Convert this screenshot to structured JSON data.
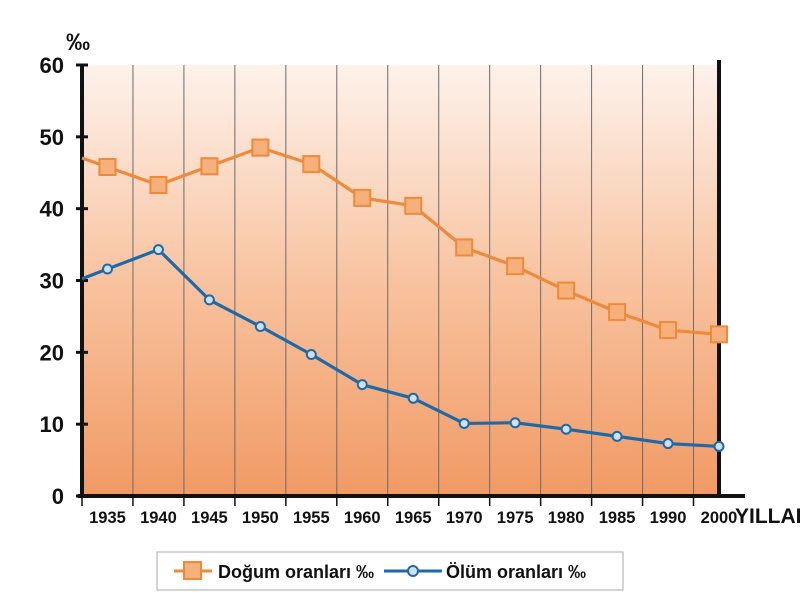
{
  "chart_data": {
    "type": "line",
    "y_unit_label": "‰",
    "x_axis_label": "YILLAR",
    "x": [
      1935,
      1940,
      1945,
      1950,
      1955,
      1960,
      1965,
      1970,
      1975,
      1980,
      1985,
      1990,
      2000
    ],
    "x_tick_labels": [
      "1935",
      "1940",
      "1945",
      "1950",
      "1955",
      "1960",
      "1965",
      "1970",
      "1975",
      "1980",
      "1985",
      "1990",
      "2000"
    ],
    "y_ticks": [
      0,
      10,
      20,
      30,
      40,
      50,
      60
    ],
    "ylim": [
      0,
      60
    ],
    "grid": "vertical",
    "legend_position": "bottom",
    "series": [
      {
        "name": "Doğum oranları ‰",
        "color": "#ee8a3a",
        "marker": "square",
        "values": [
          45.8,
          43.3,
          45.9,
          48.5,
          46.2,
          41.5,
          40.4,
          34.6,
          32.0,
          28.6,
          25.6,
          23.1,
          22.5
        ]
      },
      {
        "name": "Ölüm oranları ‰",
        "color": "#1e6aa8",
        "marker": "circle",
        "values": [
          31.6,
          34.3,
          27.3,
          23.6,
          19.7,
          15.5,
          13.6,
          10.1,
          10.2,
          9.3,
          8.3,
          7.3,
          6.9
        ]
      }
    ]
  }
}
